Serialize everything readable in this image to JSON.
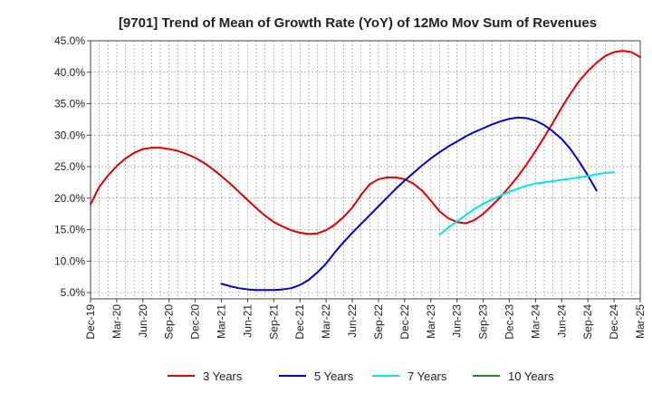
{
  "chart_data": {
    "type": "line",
    "title": "[9701]  Trend of Mean of Growth Rate (YoY) of 12Mo Mov Sum of Revenues",
    "xlabel": "",
    "ylabel": "",
    "ylim": [
      4.0,
      45.0
    ],
    "yticks": [
      5.0,
      10.0,
      15.0,
      20.0,
      25.0,
      30.0,
      35.0,
      40.0,
      45.0
    ],
    "ytick_labels": [
      "5.0%",
      "10.0%",
      "15.0%",
      "20.0%",
      "25.0%",
      "30.0%",
      "35.0%",
      "40.0%",
      "45.0%"
    ],
    "x_start": "Dec-19",
    "x_months": 63,
    "xtick_labels": [
      "Dec-19",
      "Mar-20",
      "Jun-20",
      "Sep-20",
      "Dec-20",
      "Mar-21",
      "Jun-21",
      "Sep-21",
      "Dec-21",
      "Mar-22",
      "Jun-22",
      "Sep-22",
      "Dec-22",
      "Mar-23",
      "Jun-23",
      "Sep-23",
      "Dec-23",
      "Mar-24",
      "Jun-24",
      "Sep-24",
      "Dec-24",
      "Mar-25"
    ],
    "legend_position": "bottom",
    "series": [
      {
        "name": "3 Years",
        "color": "#dd0000",
        "start_index": 0,
        "values": [
          19.0,
          21.8,
          23.6,
          25.1,
          26.3,
          27.2,
          27.8,
          28.0,
          28.0,
          27.8,
          27.5,
          27.0,
          26.4,
          25.6,
          24.6,
          23.5,
          22.3,
          21.0,
          19.7,
          18.4,
          17.2,
          16.2,
          15.5,
          14.9,
          14.5,
          14.3,
          14.4,
          14.9,
          15.8,
          17.0,
          18.5,
          20.5,
          22.2,
          23.0,
          23.3,
          23.3,
          23.0,
          22.3,
          21.2,
          19.6,
          17.9,
          16.8,
          16.2,
          16.0,
          16.5,
          17.5,
          18.8,
          20.2,
          21.8,
          23.5,
          25.4,
          27.5,
          29.7,
          32.0,
          34.4,
          36.6,
          38.6,
          40.2,
          41.5,
          42.6,
          43.2,
          43.4,
          43.2,
          42.4
        ]
      },
      {
        "name": "5 Years",
        "color": "#0000cc",
        "start_index": 15,
        "values": [
          6.4,
          6.0,
          5.7,
          5.5,
          5.4,
          5.4,
          5.4,
          5.5,
          5.7,
          6.2,
          7.0,
          8.2,
          9.6,
          11.4,
          13.0,
          14.5,
          15.9,
          17.3,
          18.7,
          20.1,
          21.5,
          22.8,
          24.0,
          25.2,
          26.3,
          27.3,
          28.2,
          29.0,
          29.8,
          30.5,
          31.1,
          31.7,
          32.2,
          32.6,
          32.8,
          32.7,
          32.3,
          31.6,
          30.6,
          29.4,
          27.8,
          25.8,
          23.6,
          21.2
        ]
      },
      {
        "name": "7 Years",
        "color": "#00e5ee",
        "start_index": 40,
        "values": [
          14.2,
          15.3,
          16.3,
          17.3,
          18.3,
          19.1,
          19.8,
          20.4,
          21.0,
          21.5,
          22.0,
          22.3,
          22.5,
          22.7,
          22.9,
          23.1,
          23.3,
          23.5,
          23.8,
          24.0,
          24.1
        ]
      },
      {
        "name": "10 Years",
        "color": "#228b22",
        "start_index": 0,
        "values": []
      }
    ]
  }
}
